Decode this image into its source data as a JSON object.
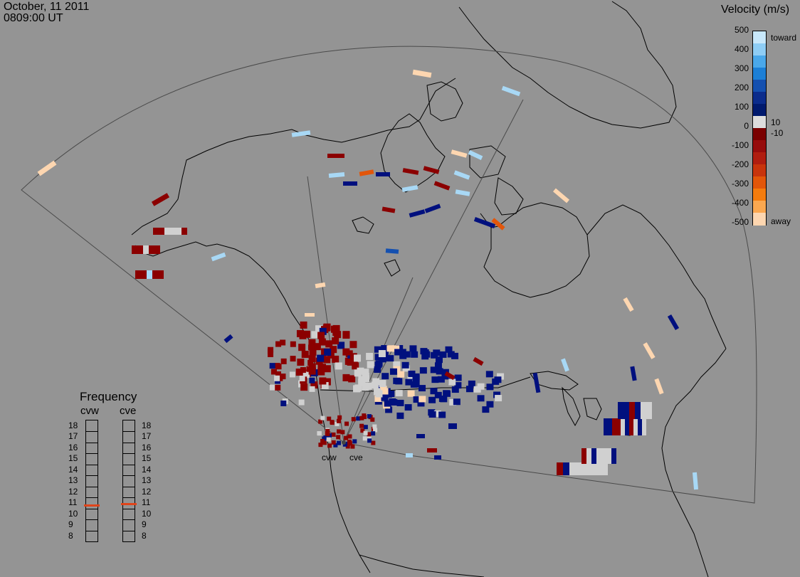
{
  "header": {
    "date": "October, 11 2011",
    "time": "0809:00 UT"
  },
  "velocity_scale": {
    "title": "Velocity (m/s)",
    "tick_labels": [
      "500",
      "400",
      "300",
      "200",
      "100",
      "0",
      "-100",
      "-200",
      "-300",
      "-400",
      "-500"
    ],
    "inner_labels": [
      "10",
      "-10"
    ],
    "toward_label": "toward",
    "away_label": "away",
    "colors_top_to_bottom": [
      "#c8e8fb",
      "#8ecdf5",
      "#4aa8ea",
      "#1c7fd6",
      "#1450b0",
      "#0b2c8c",
      "#001a6e",
      "#dddddd",
      "#7a0000",
      "#960c0c",
      "#b01d10",
      "#c8340c",
      "#e2560a",
      "#f47c0e",
      "#fba850",
      "#fdd6b0"
    ]
  },
  "frequency_panel": {
    "title": "Frequency",
    "radars": [
      "cvw",
      "cve"
    ],
    "scale_labels": [
      "18",
      "17",
      "16",
      "15",
      "14",
      "13",
      "12",
      "11",
      "10",
      "9",
      "8"
    ],
    "cvw_frequency_mhz": 10.8,
    "cve_frequency_mhz": 10.9,
    "marker_color": "#e0441a"
  },
  "stations": {
    "west": "cvw",
    "east": "cve"
  },
  "colors": {
    "background": "#949494",
    "ground_scatter": "#d0d0d0",
    "strong_away": "#8b0000",
    "strong_toward": "#00107e"
  }
}
